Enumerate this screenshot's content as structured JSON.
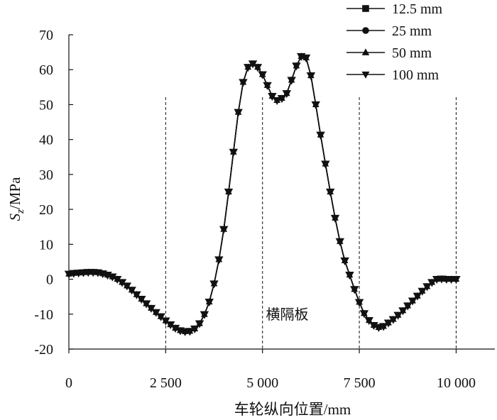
{
  "chart_data": {
    "type": "line",
    "title": "",
    "xlabel": "车轮纵向位置/mm",
    "ylabel_main": "S",
    "ylabel_sub": "z",
    "ylabel_unit": "/MPa",
    "xlim": [
      0,
      11000
    ],
    "ylim": [
      -20,
      70
    ],
    "xticks": [
      0,
      2500,
      5000,
      7500,
      10000
    ],
    "xtick_labels": [
      "0",
      "2 500",
      "5 000",
      "7 500",
      "10 000"
    ],
    "yticks": [
      -20,
      -10,
      0,
      10,
      20,
      30,
      40,
      50,
      60,
      70
    ],
    "ytick_labels": [
      "-20",
      "-10",
      "0",
      "10",
      "20",
      "30",
      "40",
      "50",
      "60",
      "70"
    ],
    "grid": false,
    "legend_position": "top-right",
    "vlines": [
      2500,
      5000,
      7500,
      10000
    ],
    "annotation": {
      "text": "横隔板",
      "x": 5050,
      "y": -10
    },
    "x": [
      0,
      125,
      250,
      375,
      500,
      625,
      750,
      875,
      1000,
      1125,
      1250,
      1375,
      1500,
      1625,
      1750,
      1875,
      2000,
      2125,
      2250,
      2375,
      2500,
      2625,
      2750,
      2875,
      3000,
      3125,
      3250,
      3375,
      3500,
      3625,
      3750,
      3875,
      4000,
      4125,
      4250,
      4375,
      4500,
      4625,
      4750,
      4875,
      5000,
      5125,
      5250,
      5375,
      5500,
      5625,
      5750,
      5875,
      6000,
      6125,
      6250,
      6375,
      6500,
      6625,
      6750,
      6875,
      7000,
      7125,
      7250,
      7375,
      7500,
      7625,
      7750,
      7875,
      8000,
      8125,
      8250,
      8375,
      8500,
      8625,
      8750,
      8875,
      9000,
      9125,
      9250,
      9375,
      9500,
      9625,
      9750,
      9875,
      10000
    ],
    "series": [
      {
        "name": "12.5 mm",
        "marker": "square",
        "values": [
          1.5,
          1.7,
          1.8,
          1.9,
          2.0,
          2.0,
          1.9,
          1.6,
          1.2,
          0.7,
          0.0,
          -0.9,
          -1.9,
          -3.1,
          -4.4,
          -5.7,
          -7.0,
          -8.3,
          -9.5,
          -10.7,
          -11.9,
          -13.0,
          -14.0,
          -14.7,
          -15.0,
          -14.9,
          -14.2,
          -12.7,
          -10.1,
          -6.5,
          -1.3,
          5.6,
          14.3,
          25.0,
          36.4,
          47.8,
          56.4,
          60.7,
          61.7,
          60.7,
          58.6,
          55.5,
          52.4,
          51.2,
          51.8,
          53.2,
          57.0,
          61.1,
          63.8,
          63.4,
          58.3,
          50.0,
          41.3,
          33.0,
          25.0,
          17.5,
          10.8,
          5.3,
          1.2,
          -2.9,
          -6.6,
          -9.8,
          -11.8,
          -13.2,
          -13.8,
          -13.5,
          -12.5,
          -11.5,
          -10.3,
          -9.0,
          -7.6,
          -6.2,
          -4.8,
          -3.4,
          -2.1,
          -0.9,
          0.0,
          0.1,
          0.0,
          0.0,
          0.0
        ]
      },
      {
        "name": "25 mm",
        "marker": "circle",
        "values": [
          1.5,
          1.7,
          1.8,
          1.9,
          2.0,
          2.0,
          1.9,
          1.6,
          1.2,
          0.7,
          0.0,
          -0.9,
          -1.9,
          -3.1,
          -4.4,
          -5.7,
          -7.0,
          -8.3,
          -9.5,
          -10.7,
          -11.9,
          -13.0,
          -14.0,
          -14.7,
          -15.0,
          -14.9,
          -14.2,
          -12.7,
          -10.1,
          -6.5,
          -1.3,
          5.6,
          14.3,
          25.0,
          36.4,
          47.8,
          56.4,
          60.7,
          61.7,
          60.7,
          58.6,
          55.5,
          52.4,
          51.2,
          51.8,
          53.2,
          57.0,
          61.1,
          63.8,
          63.4,
          58.3,
          50.0,
          41.3,
          33.0,
          25.0,
          17.5,
          10.8,
          5.3,
          1.2,
          -2.9,
          -6.6,
          -9.8,
          -11.8,
          -13.2,
          -13.8,
          -13.5,
          -12.5,
          -11.5,
          -10.3,
          -9.0,
          -7.6,
          -6.2,
          -4.8,
          -3.4,
          -2.1,
          -0.9,
          0.0,
          0.1,
          0.0,
          0.0,
          0.0
        ]
      },
      {
        "name": "50 mm",
        "marker": "triangle-up",
        "values": [
          1.5,
          1.7,
          1.8,
          1.9,
          2.0,
          2.0,
          1.9,
          1.6,
          1.2,
          0.7,
          0.0,
          -0.9,
          -1.9,
          -3.1,
          -4.4,
          -5.7,
          -7.0,
          -8.3,
          -9.5,
          -10.7,
          -11.9,
          -13.0,
          -14.0,
          -14.7,
          -15.0,
          -14.9,
          -14.2,
          -12.7,
          -10.1,
          -6.5,
          -1.3,
          5.6,
          14.3,
          25.0,
          36.4,
          47.8,
          56.4,
          60.7,
          61.7,
          60.7,
          58.6,
          55.5,
          52.4,
          51.2,
          51.8,
          53.2,
          57.0,
          61.1,
          63.8,
          63.4,
          58.3,
          50.0,
          41.3,
          33.0,
          25.0,
          17.5,
          10.8,
          5.3,
          1.2,
          -2.9,
          -6.6,
          -9.8,
          -11.8,
          -13.2,
          -13.8,
          -13.5,
          -12.5,
          -11.5,
          -10.3,
          -9.0,
          -7.6,
          -6.2,
          -4.8,
          -3.4,
          -2.1,
          -0.9,
          0.0,
          0.1,
          0.0,
          0.0,
          0.0
        ]
      },
      {
        "name": "100 mm",
        "marker": "triangle-down",
        "values": [
          1.5,
          1.7,
          1.8,
          1.9,
          2.0,
          2.0,
          1.9,
          1.6,
          1.2,
          0.7,
          0.0,
          -0.9,
          -1.9,
          -3.1,
          -4.4,
          -5.7,
          -7.0,
          -8.3,
          -9.5,
          -10.7,
          -11.9,
          -13.0,
          -14.0,
          -14.7,
          -15.0,
          -14.9,
          -14.2,
          -12.7,
          -10.1,
          -6.5,
          -1.3,
          5.6,
          14.3,
          25.0,
          36.4,
          47.8,
          56.4,
          60.7,
          61.7,
          60.7,
          58.6,
          55.5,
          52.4,
          51.2,
          51.8,
          53.2,
          57.0,
          61.1,
          63.8,
          63.4,
          58.3,
          50.0,
          41.3,
          33.0,
          25.0,
          17.5,
          10.8,
          5.3,
          1.2,
          -2.9,
          -6.6,
          -9.8,
          -11.8,
          -13.2,
          -13.8,
          -13.5,
          -12.5,
          -11.5,
          -10.3,
          -9.0,
          -7.6,
          -6.2,
          -4.8,
          -3.4,
          -2.1,
          -0.9,
          0.0,
          0.1,
          0.0,
          0.0,
          0.0
        ]
      }
    ],
    "line_color": "#111111"
  }
}
